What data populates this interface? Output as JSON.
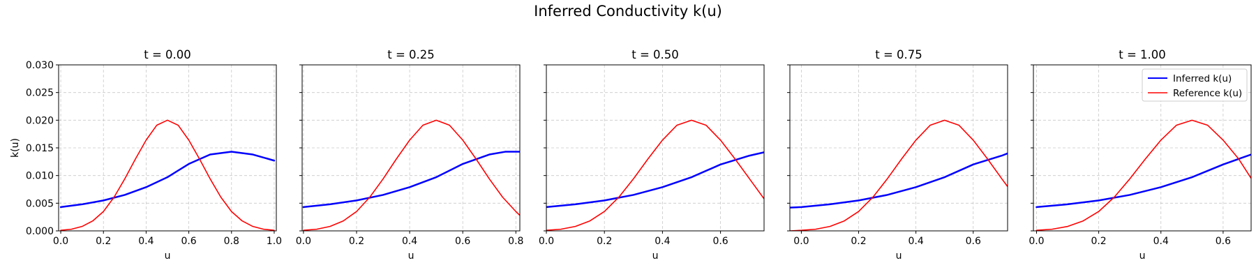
{
  "figure": {
    "title": "Inferred Conductivity k(u)"
  },
  "chart_data": {
    "type": "line",
    "ylabel": "k(u)",
    "xlabel": "u",
    "ylim": [
      0,
      0.03
    ],
    "yticks": [
      0.0,
      0.005,
      0.01,
      0.015,
      0.02,
      0.025,
      0.03
    ],
    "ytick_labels": [
      "0.000",
      "0.005",
      "0.010",
      "0.015",
      "0.020",
      "0.025",
      "0.030"
    ],
    "grid": true,
    "legend": {
      "placement": "top-right",
      "panel_index": 4,
      "entries": [
        "Inferred k(u)",
        "Reference k(u)"
      ]
    },
    "colors": {
      "inferred": "#0000ff",
      "reference": "#ff0000"
    },
    "panels": [
      {
        "title": "t = 0.00",
        "xlim": [
          -0.01,
          1.01
        ],
        "xticks": [
          0.0,
          0.2,
          0.4,
          0.6,
          0.8,
          1.0
        ],
        "xtick_labels": [
          "0.0",
          "0.2",
          "0.4",
          "0.6",
          "0.8",
          "1.0"
        ],
        "series": [
          {
            "name": "Inferred k(u)",
            "x": [
              0.0,
              0.1,
              0.2,
              0.3,
              0.4,
              0.5,
              0.6,
              0.7,
              0.8,
              0.9,
              1.0
            ],
            "values": [
              0.0043,
              0.0048,
              0.0055,
              0.0065,
              0.0079,
              0.0097,
              0.0121,
              0.0138,
              0.0143,
              0.0138,
              0.0127
            ]
          },
          {
            "name": "Reference k(u)",
            "x": [
              0.0,
              0.05,
              0.1,
              0.15,
              0.2,
              0.25,
              0.3,
              0.35,
              0.4,
              0.45,
              0.5,
              0.55,
              0.6,
              0.65,
              0.7,
              0.75,
              0.8,
              0.85,
              0.9,
              0.95,
              1.0
            ],
            "values": [
              0.0001,
              0.0003,
              0.0008,
              0.0018,
              0.0035,
              0.0061,
              0.0094,
              0.013,
              0.0164,
              0.0191,
              0.02,
              0.0191,
              0.0164,
              0.013,
              0.0094,
              0.0061,
              0.0035,
              0.0018,
              0.0008,
              0.0003,
              0.0001
            ]
          }
        ]
      },
      {
        "title": "t = 0.25",
        "xlim": [
          -0.005,
          0.815
        ],
        "xticks": [
          0.0,
          0.2,
          0.4,
          0.6,
          0.8
        ],
        "xtick_labels": [
          "0.0",
          "0.2",
          "0.4",
          "0.6",
          "0.8"
        ],
        "series": [
          {
            "name": "Inferred k(u)",
            "x": [
              0.0,
              0.1,
              0.2,
              0.3,
              0.4,
              0.5,
              0.6,
              0.7,
              0.76,
              0.815
            ],
            "values": [
              0.0043,
              0.0048,
              0.0055,
              0.0065,
              0.0079,
              0.0097,
              0.0121,
              0.0138,
              0.0143,
              0.0143
            ]
          },
          {
            "name": "Reference k(u)",
            "x": [
              0.0,
              0.05,
              0.1,
              0.15,
              0.2,
              0.25,
              0.3,
              0.35,
              0.4,
              0.45,
              0.5,
              0.55,
              0.6,
              0.65,
              0.7,
              0.75,
              0.8,
              0.815
            ],
            "values": [
              0.0001,
              0.0003,
              0.0008,
              0.0018,
              0.0035,
              0.0061,
              0.0094,
              0.013,
              0.0164,
              0.0191,
              0.02,
              0.0191,
              0.0164,
              0.013,
              0.0094,
              0.0061,
              0.0035,
              0.0028
            ]
          }
        ]
      },
      {
        "title": "t = 0.50",
        "xlim": [
          0.0,
          0.75
        ],
        "xticks": [
          0.0,
          0.2,
          0.4,
          0.6
        ],
        "xtick_labels": [
          "0.0",
          "0.2",
          "0.4",
          "0.6"
        ],
        "series": [
          {
            "name": "Inferred k(u)",
            "x": [
              0.0,
              0.1,
              0.2,
              0.3,
              0.4,
              0.5,
              0.6,
              0.7,
              0.75
            ],
            "values": [
              0.0043,
              0.0048,
              0.0055,
              0.0065,
              0.0079,
              0.0097,
              0.012,
              0.0136,
              0.0142
            ]
          },
          {
            "name": "Reference k(u)",
            "x": [
              0.0,
              0.05,
              0.1,
              0.15,
              0.2,
              0.25,
              0.3,
              0.35,
              0.4,
              0.45,
              0.5,
              0.55,
              0.6,
              0.65,
              0.7,
              0.75
            ],
            "values": [
              0.0001,
              0.0003,
              0.0008,
              0.0018,
              0.0035,
              0.0061,
              0.0094,
              0.013,
              0.0164,
              0.0191,
              0.02,
              0.0191,
              0.0164,
              0.013,
              0.0094,
              0.0058
            ]
          }
        ]
      },
      {
        "title": "t = 0.75",
        "xlim": [
          -0.04,
          0.72
        ],
        "xticks": [
          0.0,
          0.2,
          0.4,
          0.6
        ],
        "xtick_labels": [
          "0.0",
          "0.2",
          "0.4",
          "0.6"
        ],
        "series": [
          {
            "name": "Inferred k(u)",
            "x": [
              -0.04,
              0.0,
              0.1,
              0.2,
              0.3,
              0.4,
              0.5,
              0.6,
              0.7,
              0.72
            ],
            "values": [
              0.0042,
              0.0043,
              0.0048,
              0.0055,
              0.0065,
              0.0079,
              0.0097,
              0.012,
              0.0136,
              0.014
            ]
          },
          {
            "name": "Reference k(u)",
            "x": [
              -0.04,
              0.0,
              0.05,
              0.1,
              0.15,
              0.2,
              0.25,
              0.3,
              0.35,
              0.4,
              0.45,
              0.5,
              0.55,
              0.6,
              0.65,
              0.7,
              0.72
            ],
            "values": [
              0.0,
              0.0001,
              0.0003,
              0.0008,
              0.0018,
              0.0035,
              0.0061,
              0.0094,
              0.013,
              0.0164,
              0.0191,
              0.02,
              0.0191,
              0.0164,
              0.013,
              0.0094,
              0.008
            ]
          }
        ]
      },
      {
        "title": "t = 1.00",
        "xlim": [
          -0.01,
          0.69
        ],
        "xticks": [
          0.0,
          0.2,
          0.4,
          0.6
        ],
        "xtick_labels": [
          "0.0",
          "0.2",
          "0.4",
          "0.6"
        ],
        "series": [
          {
            "name": "Inferred k(u)",
            "x": [
              0.0,
              0.1,
              0.2,
              0.3,
              0.4,
              0.5,
              0.6,
              0.69
            ],
            "values": [
              0.0043,
              0.0048,
              0.0055,
              0.0065,
              0.0079,
              0.0097,
              0.012,
              0.0138
            ]
          },
          {
            "name": "Reference k(u)",
            "x": [
              0.0,
              0.05,
              0.1,
              0.15,
              0.2,
              0.25,
              0.3,
              0.35,
              0.4,
              0.45,
              0.5,
              0.55,
              0.6,
              0.65,
              0.69
            ],
            "values": [
              0.0001,
              0.0003,
              0.0008,
              0.0018,
              0.0035,
              0.0061,
              0.0094,
              0.013,
              0.0164,
              0.0191,
              0.02,
              0.0191,
              0.0164,
              0.013,
              0.0095
            ]
          }
        ]
      }
    ]
  }
}
